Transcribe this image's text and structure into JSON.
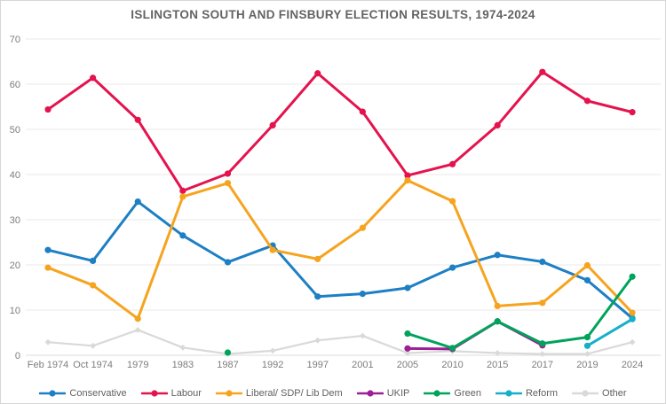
{
  "title": "ISLINGTON SOUTH AND FINSBURY ELECTION RESULTS, 1974-2024",
  "colors": {
    "conservative": "#1d7fc4",
    "labour": "#e4134e",
    "libdem": "#f6a41f",
    "ukip": "#9c1f93",
    "green": "#00a35c",
    "reform": "#16afc9",
    "other": "#d9d9d9",
    "gridline": "#e9e9e9",
    "axis_text": "#7d7d7d",
    "title_text": "#636363"
  },
  "chart_data": {
    "type": "line",
    "title": "ISLINGTON SOUTH AND FINSBURY ELECTION RESULTS, 1974-2024",
    "xlabel": "",
    "ylabel": "",
    "ylim": [
      0,
      70
    ],
    "y_ticks": [
      0,
      10,
      20,
      30,
      40,
      50,
      60,
      70
    ],
    "grid": true,
    "legend_position": "bottom",
    "categories": [
      "Feb 1974",
      "Oct 1974",
      "1979",
      "1983",
      "1987",
      "1992",
      "1997",
      "2001",
      "2005",
      "2010",
      "2015",
      "2017",
      "2019",
      "2024"
    ],
    "draw_order": [
      "Other",
      "Conservative",
      "Labour",
      "Liberal/ SDP/ Lib Dem",
      "UKIP",
      "Green",
      "Reform"
    ],
    "series": [
      {
        "name": "Conservative",
        "color": "#1d7fc4",
        "marker": "circle",
        "values": [
          23.3,
          20.9,
          34.0,
          26.5,
          20.6,
          24.3,
          13.0,
          13.6,
          14.9,
          19.4,
          22.2,
          20.7,
          16.6,
          8.2
        ]
      },
      {
        "name": "Labour",
        "color": "#e4134e",
        "marker": "circle",
        "values": [
          54.4,
          61.4,
          52.1,
          36.4,
          40.2,
          50.9,
          62.4,
          53.9,
          39.8,
          42.3,
          50.9,
          62.7,
          56.3,
          53.8
        ]
      },
      {
        "name": "Liberal/ SDP/ Lib Dem",
        "color": "#f6a41f",
        "marker": "circle",
        "values": [
          19.4,
          15.5,
          8.1,
          35.1,
          38.1,
          23.3,
          21.3,
          28.2,
          38.7,
          34.1,
          10.9,
          11.6,
          19.9,
          9.4
        ]
      },
      {
        "name": "UKIP",
        "color": "#9c1f93",
        "marker": "circle",
        "values": [
          null,
          null,
          null,
          null,
          null,
          null,
          null,
          null,
          1.5,
          1.4,
          7.5,
          2.2,
          null,
          null
        ]
      },
      {
        "name": "Green",
        "color": "#00a35c",
        "marker": "circle",
        "values": [
          null,
          null,
          null,
          null,
          0.6,
          null,
          null,
          null,
          4.8,
          1.6,
          7.5,
          2.6,
          4.0,
          17.4
        ]
      },
      {
        "name": "Reform",
        "color": "#16afc9",
        "marker": "circle",
        "values": [
          null,
          null,
          null,
          null,
          null,
          null,
          null,
          null,
          null,
          null,
          null,
          null,
          2.1,
          8.0
        ]
      },
      {
        "name": "Other",
        "color": "#d9d9d9",
        "marker": "diamond",
        "values": [
          2.9,
          2.1,
          5.6,
          1.7,
          0.3,
          1.0,
          3.3,
          4.3,
          0.5,
          0.9,
          0.5,
          0.3,
          0.3,
          2.9
        ]
      }
    ]
  }
}
